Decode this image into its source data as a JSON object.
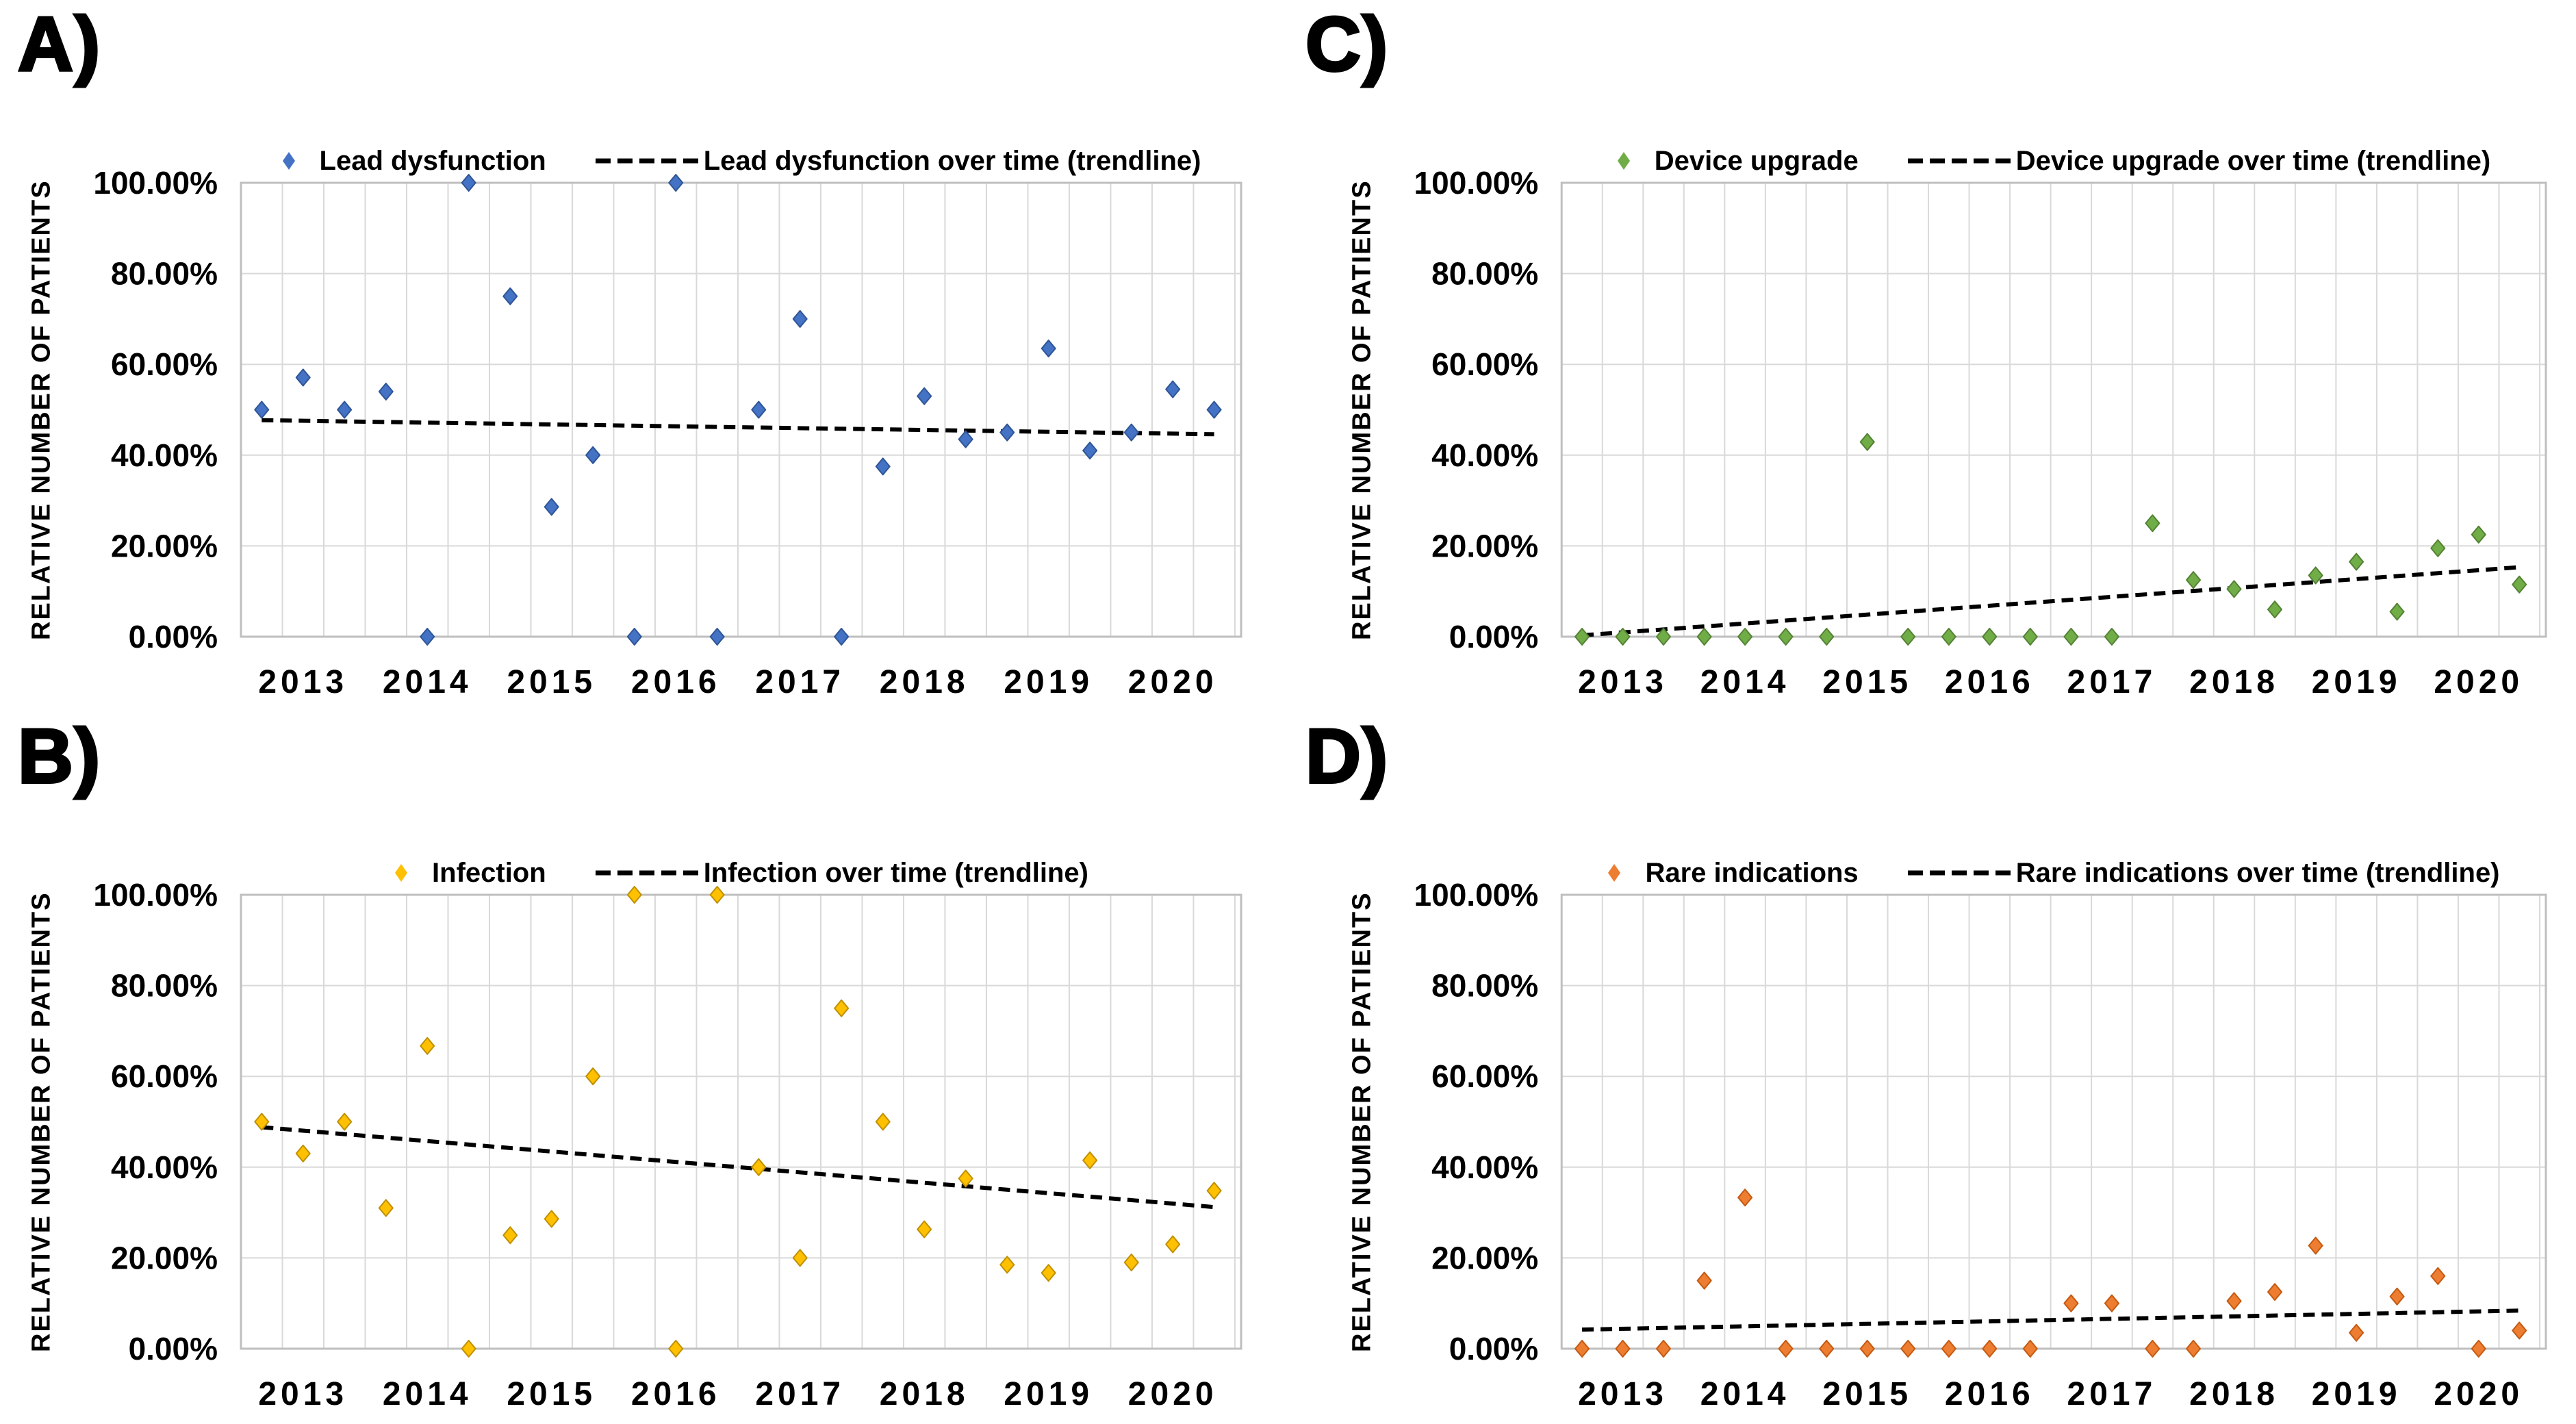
{
  "figure": {
    "background": "#ffffff",
    "text_color": "#000000",
    "grid_color": "#d9d9d9",
    "border_color": "#bfbfbf",
    "trendline_color": "#000000",
    "y_axis_title": "RELATIVE NUMBER OF PATIENTS",
    "y_tick_labels": [
      "100.00%",
      "80.00%",
      "60.00%",
      "40.00%",
      "20.00%",
      "0.00%"
    ],
    "y_tick_values": [
      100,
      80,
      60,
      40,
      20,
      0
    ],
    "x_tick_labels": [
      "2013",
      "2014",
      "2015",
      "2016",
      "2017",
      "2018",
      "2019",
      "2020"
    ],
    "x_grid": {
      "start": 2012.5,
      "step": 0.333333,
      "count": 25
    }
  },
  "chart_data": [
    {
      "type": "scatter",
      "panel_letter": "A)",
      "series_name": "Lead dysfunction",
      "trend_name": "Lead dysfunction over time (trendline)",
      "marker_color": "#4472c4",
      "marker_edge_color": "#2f5597",
      "ylabel": "RELATIVE NUMBER OF PATIENTS",
      "ylim": [
        0,
        100
      ],
      "xlim": [
        2012.5,
        2020.55
      ],
      "x": [
        2012.667,
        2013,
        2013.333,
        2013.667,
        2014,
        2014.333,
        2014.667,
        2015,
        2015.333,
        2015.667,
        2016,
        2016.333,
        2016.667,
        2017,
        2017.333,
        2017.667,
        2018,
        2018.333,
        2018.667,
        2019,
        2019.333,
        2019.667,
        2020,
        2020.333
      ],
      "y_percent": [
        50,
        57.1,
        50,
        54,
        0,
        100,
        75,
        28.6,
        40,
        0,
        100,
        0,
        50,
        70,
        0,
        37.5,
        53,
        43.5,
        45,
        63.5,
        41,
        45,
        54.5,
        50
      ],
      "trendline": {
        "x0": 2012.667,
        "y0": 47.7,
        "x1": 2020.333,
        "y1": 44.6
      }
    },
    {
      "type": "scatter",
      "panel_letter": "B)",
      "series_name": "Infection",
      "trend_name": "Infection over time (trendline)",
      "marker_color": "#ffc000",
      "marker_edge_color": "#bf9000",
      "ylabel": "RELATIVE NUMBER OF PATIENTS",
      "ylim": [
        0,
        100
      ],
      "xlim": [
        2012.5,
        2020.55
      ],
      "x": [
        2012.667,
        2013,
        2013.333,
        2013.667,
        2014,
        2014.333,
        2014.667,
        2015,
        2015.333,
        2015.667,
        2016,
        2016.333,
        2016.667,
        2017,
        2017.333,
        2017.667,
        2018,
        2018.333,
        2018.667,
        2019,
        2019.333,
        2019.667,
        2020,
        2020.333
      ],
      "y_percent": [
        50,
        43,
        50,
        31,
        66.7,
        0,
        25,
        28.6,
        60,
        100,
        0,
        100,
        40,
        20,
        75,
        50,
        26.3,
        37.5,
        18.5,
        16.7,
        41.5,
        19,
        23,
        34.8
      ],
      "trendline": {
        "x0": 2012.667,
        "y0": 48.8,
        "x1": 2020.333,
        "y1": 31.2
      }
    },
    {
      "type": "scatter",
      "panel_letter": "C)",
      "series_name": "Device upgrade",
      "trend_name": "Device upgrade over time (trendline)",
      "marker_color": "#70ad47",
      "marker_edge_color": "#548235",
      "ylabel": "RELATIVE NUMBER OF PATIENTS",
      "ylim": [
        0,
        100
      ],
      "xlim": [
        2012.5,
        2020.55
      ],
      "x": [
        2012.667,
        2013,
        2013.333,
        2013.667,
        2014,
        2014.333,
        2014.667,
        2015,
        2015.333,
        2015.667,
        2016,
        2016.333,
        2016.667,
        2017,
        2017.333,
        2017.667,
        2018,
        2018.333,
        2018.667,
        2019,
        2019.333,
        2019.667,
        2020,
        2020.333
      ],
      "y_percent": [
        0,
        0,
        0,
        0,
        0,
        0,
        0,
        42.9,
        0,
        0,
        0,
        0,
        0,
        0,
        25,
        12.5,
        10.5,
        6,
        13.5,
        16.5,
        5.5,
        19.5,
        22.5,
        11.5
      ],
      "trendline": {
        "x0": 2012.667,
        "y0": 0.3,
        "x1": 2020.333,
        "y1": 15.3
      }
    },
    {
      "type": "scatter",
      "panel_letter": "D)",
      "series_name": "Rare indications",
      "trend_name": "Rare indications over time (trendline)",
      "marker_color": "#ed7d31",
      "marker_edge_color": "#c55a11",
      "ylabel": "RELATIVE NUMBER OF PATIENTS",
      "ylim": [
        0,
        100
      ],
      "xlim": [
        2012.5,
        2020.55
      ],
      "x": [
        2012.667,
        2013,
        2013.333,
        2013.667,
        2014,
        2014.333,
        2014.667,
        2015,
        2015.333,
        2015.667,
        2016,
        2016.333,
        2016.667,
        2017,
        2017.333,
        2017.667,
        2018,
        2018.333,
        2018.667,
        2019,
        2019.333,
        2019.667,
        2020,
        2020.333
      ],
      "y_percent": [
        0,
        0,
        0,
        15,
        33.3,
        0,
        0,
        0,
        0,
        0,
        0,
        0,
        10,
        10,
        0,
        0,
        10.5,
        12.5,
        22.7,
        3.5,
        11.5,
        16,
        0,
        4
      ],
      "trendline": {
        "x0": 2012.667,
        "y0": 4.2,
        "x1": 2020.333,
        "y1": 8.4
      }
    }
  ]
}
